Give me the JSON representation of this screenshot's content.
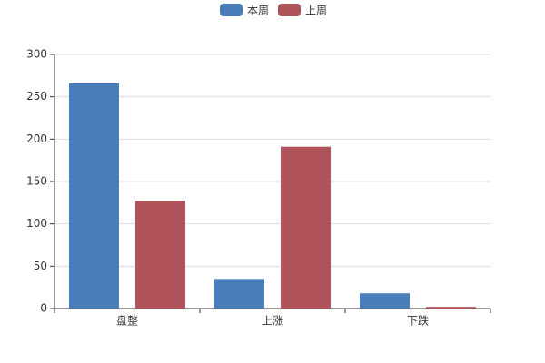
{
  "chart_data": {
    "type": "bar",
    "categories": [
      "盘整",
      "上涨",
      "下跌"
    ],
    "series": [
      {
        "name": "本周",
        "color": "#4a7ebb",
        "values": [
          266,
          35,
          18
        ]
      },
      {
        "name": "上周",
        "color": "#b0535a",
        "values": [
          127,
          191,
          2
        ]
      }
    ],
    "ylim": [
      0,
      300
    ],
    "yticks": [
      0,
      50,
      100,
      150,
      200,
      250,
      300
    ],
    "grid": true
  }
}
